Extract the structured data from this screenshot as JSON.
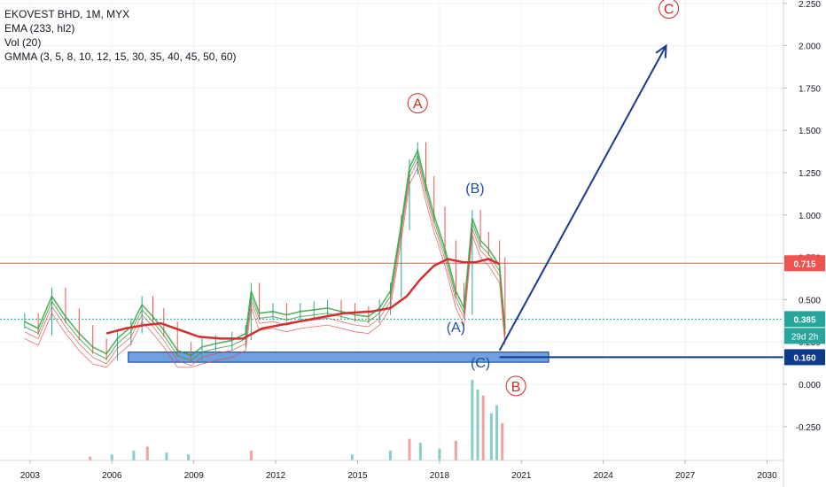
{
  "legend": {
    "title": "EKOVEST BHD, 1M, MYX",
    "ema": "EMA (233, hl2)",
    "vol": "Vol (20)",
    "gmma": "GMMA (3, 5, 8, 10, 12, 15, 30, 35, 40, 45, 50, 60)"
  },
  "colors": {
    "up": "#26a69a",
    "down": "#ef5350",
    "gmma_short": "#2e9e3a",
    "gmma_long": "#e04848",
    "ema": "#d32f2f",
    "resistance": "#ef5350",
    "support": "#0d3b8c",
    "arrow": "#1a3a8f",
    "zone": "#6fa1e0",
    "last_price_label": "#26a69a",
    "wave_red": "#d62728",
    "wave_blue": "#1f4e99"
  },
  "chart_data": {
    "type": "line",
    "title": "EKOVEST BHD, 1M, MYX",
    "x_axis_ticks": [
      "2003",
      "2006",
      "2009",
      "2012",
      "2015",
      "2018",
      "2021",
      "2024",
      "2027",
      "2030"
    ],
    "y_axis_ticks": [
      "2.250",
      "2.000",
      "1.750",
      "1.500",
      "1.250",
      "1.000",
      "0.750",
      "0.500",
      "0.250",
      "0.000",
      "-0.250"
    ],
    "ylim": [
      -0.45,
      2.27
    ],
    "xlim": [
      2001.9,
      2030.6
    ],
    "series": [
      {
        "name": "Price",
        "x": [
          2002.8,
          2003.3,
          2003.8,
          2004.3,
          2004.8,
          2005.3,
          2005.8,
          2006.2,
          2006.7,
          2007.1,
          2007.5,
          2007.9,
          2008.4,
          2008.9,
          2009.3,
          2009.8,
          2010.4,
          2010.9,
          2011.1,
          2011.4,
          2011.9,
          2012.4,
          2012.9,
          2013.4,
          2013.9,
          2014.4,
          2014.9,
          2015.4,
          2015.8,
          2016.2,
          2016.6,
          2016.9,
          2017.2,
          2017.5,
          2017.8,
          2018.2,
          2018.6,
          2018.9,
          2019.2,
          2019.5,
          2019.8,
          2020.2,
          2020.4
        ],
        "values": [
          0.37,
          0.33,
          0.52,
          0.4,
          0.3,
          0.22,
          0.18,
          0.27,
          0.34,
          0.47,
          0.4,
          0.32,
          0.2,
          0.17,
          0.22,
          0.24,
          0.26,
          0.3,
          0.55,
          0.42,
          0.43,
          0.41,
          0.43,
          0.44,
          0.45,
          0.43,
          0.41,
          0.4,
          0.45,
          0.55,
          0.95,
          1.28,
          1.38,
          1.18,
          1.0,
          0.8,
          0.55,
          0.45,
          0.98,
          0.85,
          0.8,
          0.7,
          0.33
        ]
      },
      {
        "name": "EMA 233",
        "x": [
          2005.8,
          2006.5,
          2007.2,
          2007.8,
          2008.5,
          2009.2,
          2010.0,
          2010.8,
          2011.5,
          2012.5,
          2013.5,
          2014.5,
          2015.5,
          2016.2,
          2016.8,
          2017.3,
          2017.8,
          2018.3,
          2018.9,
          2019.3,
          2019.8,
          2020.2
        ],
        "values": [
          0.3,
          0.33,
          0.35,
          0.36,
          0.32,
          0.28,
          0.27,
          0.27,
          0.33,
          0.36,
          0.39,
          0.42,
          0.43,
          0.45,
          0.52,
          0.62,
          0.7,
          0.74,
          0.72,
          0.72,
          0.74,
          0.71
        ]
      }
    ],
    "volume": {
      "x": [
        2005.2,
        2006.0,
        2006.8,
        2007.3,
        2008.0,
        2008.8,
        2011.1,
        2014.8,
        2016.2,
        2016.9,
        2017.3,
        2018.0,
        2018.6,
        2019.2,
        2019.4,
        2019.6,
        2019.9,
        2020.1,
        2020.3
      ],
      "values": [
        0.02,
        0.03,
        0.05,
        0.07,
        0.04,
        0.03,
        0.05,
        0.03,
        0.05,
        0.11,
        0.09,
        0.06,
        0.1,
        0.41,
        0.36,
        0.33,
        0.24,
        0.28,
        0.19
      ]
    },
    "annotations": [
      {
        "label": "A",
        "x": 2017.2,
        "y": 1.66,
        "circled": true,
        "color": "red"
      },
      {
        "label": "(B)",
        "x": 2019.3,
        "y": 1.16,
        "circled": false,
        "color": "blue"
      },
      {
        "label": "(A)",
        "x": 2018.6,
        "y": 0.34,
        "circled": false,
        "color": "blue"
      },
      {
        "label": "(C)",
        "x": 2019.5,
        "y": 0.13,
        "circled": false,
        "color": "blue"
      },
      {
        "label": "B",
        "x": 2020.8,
        "y": -0.01,
        "circled": true,
        "color": "red"
      },
      {
        "label": "C",
        "x": 2026.4,
        "y": 2.22,
        "circled": true,
        "color": "red"
      }
    ],
    "horizontal_lines": [
      {
        "value": 0.715,
        "label": "0.715",
        "style": "solid",
        "color": "red"
      },
      {
        "value": 0.385,
        "label": "0.385",
        "style": "dotted",
        "color": "teal"
      },
      {
        "value": 0.16,
        "label": "0.160",
        "style": "solid",
        "color": "navy"
      }
    ],
    "countdown_label": "29d 2h",
    "support_zone": {
      "x_start": 2006.6,
      "x_end": 2022.0,
      "y_low": 0.13,
      "y_high": 0.19
    },
    "projection_arrow": {
      "from": [
        2020.2,
        0.2
      ],
      "to": [
        2026.3,
        2.0
      ]
    },
    "grid": true
  }
}
